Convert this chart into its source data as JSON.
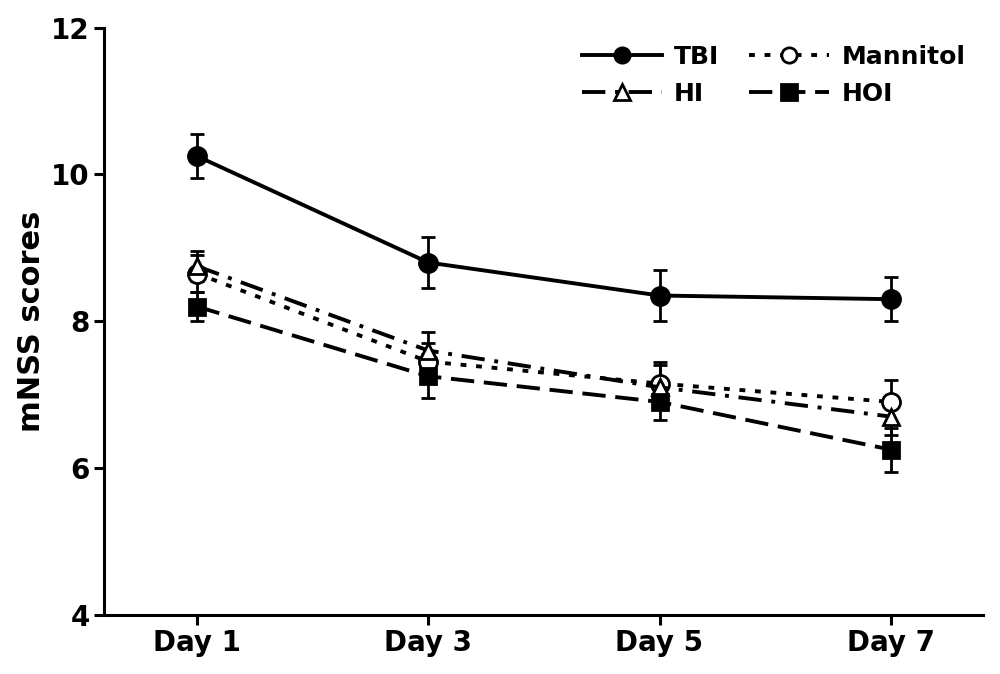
{
  "x_labels": [
    "Day 1",
    "Day 3",
    "Day 5",
    "Day 7"
  ],
  "x_values": [
    0,
    1,
    2,
    3
  ],
  "series": {
    "TBI": {
      "y": [
        10.25,
        8.8,
        8.35,
        8.3
      ],
      "yerr": [
        0.3,
        0.35,
        0.35,
        0.3
      ],
      "linestyle": "solid",
      "marker": "o",
      "markersize": 13,
      "linewidth": 2.8,
      "color": "#000000",
      "markerfacecolor": "#000000",
      "markeredgecolor": "#000000"
    },
    "Mannitol": {
      "y": [
        8.65,
        7.45,
        7.15,
        6.9
      ],
      "yerr": [
        0.25,
        0.25,
        0.3,
        0.3
      ],
      "linestyle": "dotted",
      "marker": "o",
      "markersize": 13,
      "linewidth": 2.8,
      "color": "#000000",
      "markerfacecolor": "#ffffff",
      "markeredgecolor": "#000000"
    },
    "HI": {
      "y": [
        8.75,
        7.6,
        7.1,
        6.7
      ],
      "yerr": [
        0.2,
        0.25,
        0.3,
        0.25
      ],
      "linestyle": "dashdot",
      "marker": "^",
      "markersize": 12,
      "linewidth": 2.8,
      "color": "#000000",
      "markerfacecolor": "#ffffff",
      "markeredgecolor": "#000000"
    },
    "HOI": {
      "y": [
        8.2,
        7.25,
        6.9,
        6.25
      ],
      "yerr": [
        0.2,
        0.3,
        0.25,
        0.3
      ],
      "linestyle": "dashed",
      "marker": "s",
      "markersize": 12,
      "linewidth": 2.8,
      "color": "#000000",
      "markerfacecolor": "#000000",
      "markeredgecolor": "#000000"
    }
  },
  "ylabel": "mNSS scores",
  "ylim": [
    4,
    12
  ],
  "yticks": [
    4,
    6,
    8,
    10,
    12
  ],
  "background_color": "#ffffff",
  "font_size_ticks": 20,
  "font_size_label": 22,
  "font_size_legend": 18
}
